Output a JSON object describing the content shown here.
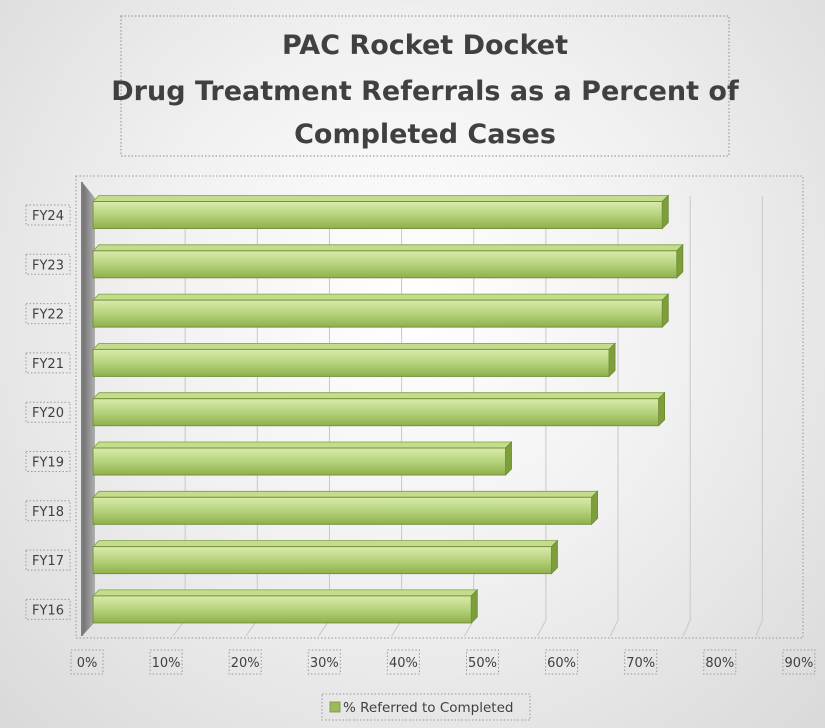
{
  "chart_data": {
    "type": "bar",
    "orientation": "horizontal",
    "title": [
      "PAC Rocket Docket",
      "Drug Treatment Referrals as a Percent of",
      "Completed Cases"
    ],
    "categories": [
      "FY24",
      "FY23",
      "FY22",
      "FY21",
      "FY20",
      "FY19",
      "FY18",
      "FY17",
      "FY16"
    ],
    "series": [
      {
        "name": "% Referred to Completed",
        "values": [
          0.785,
          0.805,
          0.785,
          0.712,
          0.78,
          0.57,
          0.688,
          0.633,
          0.523
        ]
      }
    ],
    "x_ticks": [
      "0%",
      "10%",
      "20%",
      "30%",
      "40%",
      "50%",
      "60%",
      "70%",
      "80%",
      "90%"
    ],
    "xlim": [
      0,
      0.9
    ],
    "grid": true,
    "legend_position": "bottom",
    "bar_color": "#9bbb59"
  }
}
